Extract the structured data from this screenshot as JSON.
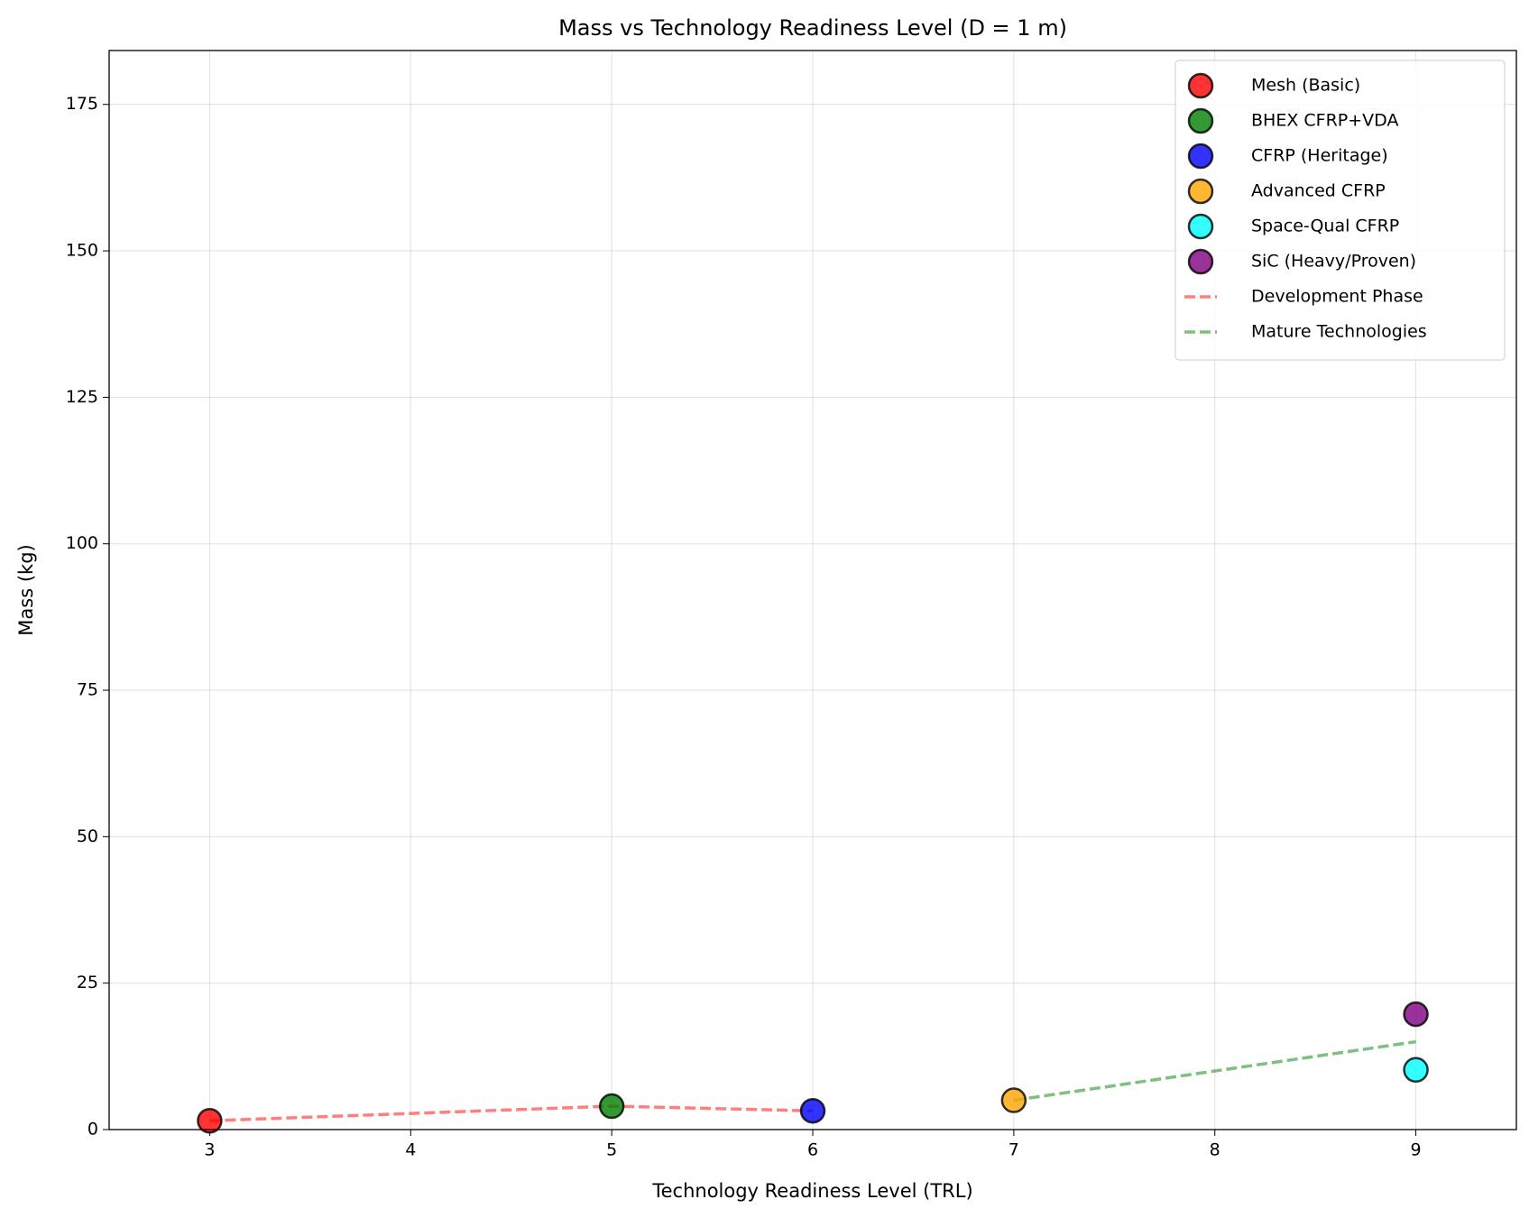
{
  "chart_data": {
    "type": "scatter",
    "title": "Mass vs Technology Readiness Level (D = 1 m)",
    "x_label": "Technology Readiness Level (TRL)",
    "y_label": "Mass (kg)",
    "xlim": [
      2.5,
      9.5
    ],
    "xticks": [
      3,
      4,
      5,
      6,
      7,
      8,
      9
    ],
    "ylim": [
      0,
      184.2
    ],
    "yticks": [
      0,
      25,
      50,
      75,
      100,
      125,
      150,
      175
    ],
    "grid": true,
    "legend": "upper right",
    "series": [
      {
        "name": "Mesh (Basic)",
        "color": "red",
        "mode": "markers",
        "x": [
          3
        ],
        "values": [
          1.5
        ]
      },
      {
        "name": "BHEX CFRP+VDA",
        "color": "green",
        "mode": "markers",
        "x": [
          5
        ],
        "values": [
          4.0
        ]
      },
      {
        "name": "CFRP (Heritage)",
        "color": "blue",
        "mode": "markers",
        "x": [
          6
        ],
        "values": [
          3.2
        ]
      },
      {
        "name": "Advanced CFRP",
        "color": "orange",
        "mode": "markers",
        "x": [
          7
        ],
        "values": [
          5.0
        ]
      },
      {
        "name": "Space-Qual CFRP",
        "color": "cyan",
        "mode": "markers",
        "x": [
          9
        ],
        "values": [
          10.2
        ]
      },
      {
        "name": "SiC (Heavy/Proven)",
        "color": "purple",
        "mode": "markers",
        "x": [
          9
        ],
        "values": [
          19.7
        ]
      },
      {
        "name": "Development Phase",
        "color": "red",
        "mode": "dashed-line",
        "x": [
          3,
          5,
          6
        ],
        "values": [
          1.5,
          4.0,
          3.2
        ]
      },
      {
        "name": "Mature Technologies",
        "color": "green",
        "mode": "dashed-line",
        "x": [
          7,
          9
        ],
        "values": [
          5.0,
          15.0
        ]
      }
    ]
  }
}
